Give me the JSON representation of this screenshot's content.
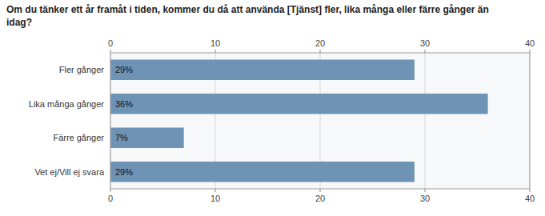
{
  "chart_data": {
    "type": "bar",
    "orientation": "horizontal",
    "title": "Om du tänker ett år framåt i tiden, kommer du då att använda [Tjänst] fler, lika många eller färre gånger än\nidag?",
    "categories": [
      "Fler gånger",
      "Lika många gånger",
      "Färre gånger",
      "Vet ej/Vill ej svara"
    ],
    "values": [
      29,
      36,
      7,
      29
    ],
    "value_labels": [
      "29%",
      "36%",
      "7%",
      "29%"
    ],
    "data_labels": true,
    "color": "#6F93B5",
    "xlim": [
      0,
      40
    ],
    "xticks": [
      0,
      10,
      20,
      30,
      40
    ],
    "grid": true
  }
}
